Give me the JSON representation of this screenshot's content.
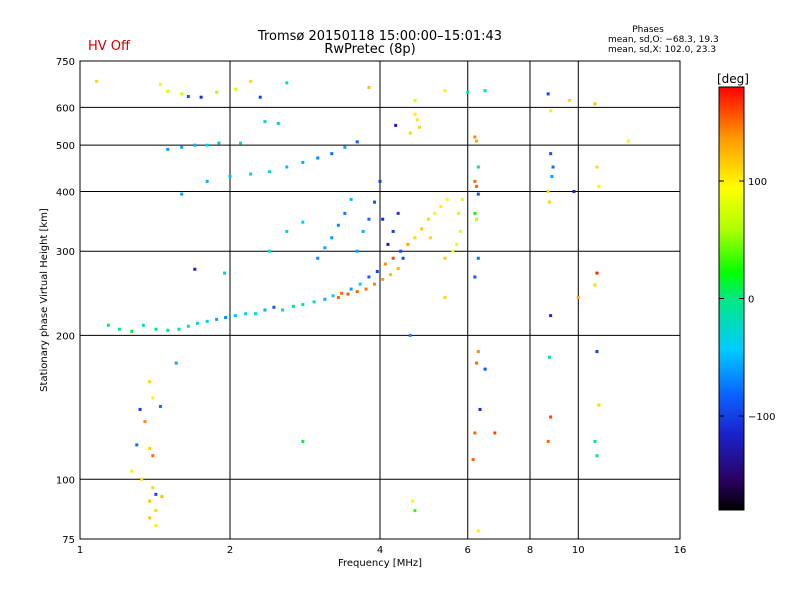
{
  "header": {
    "title_line1": "Tromsø 20150118 15:00:00–15:01:43",
    "title_line2": "RwPretec (8p)",
    "status": "HV Off",
    "status_color": "#cc0000",
    "phases_heading": "Phases",
    "phases_line1": "mean, sd,O: −68.3, 19.3",
    "phases_line2": "mean, sd,X: 102.0, 23.3"
  },
  "colorbar": {
    "unit_label": "[deg]",
    "ticks": [
      "100",
      "0",
      "−100"
    ],
    "tick_values": [
      100,
      0,
      -100
    ],
    "range": [
      -180,
      180
    ]
  },
  "chart_data": {
    "type": "scatter",
    "xlabel": "Frequency [MHz]",
    "ylabel": "Stationary phase Virtual Height [km]",
    "xscale": "log",
    "yscale": "log",
    "xlim": [
      1,
      16
    ],
    "ylim": [
      75,
      750
    ],
    "xticks": [
      1,
      2,
      4,
      6,
      8,
      10,
      16
    ],
    "xtick_labels": [
      "1",
      "2",
      "4",
      "6",
      "8",
      "10",
      "16"
    ],
    "yticks": [
      75,
      100,
      200,
      300,
      400,
      500,
      600,
      750
    ],
    "ytick_labels": [
      "75",
      "100",
      "200",
      "300",
      "400",
      "500",
      "600",
      "750"
    ],
    "grid_x": [
      2,
      4,
      6,
      8,
      10
    ],
    "grid_y": [
      100,
      200,
      300,
      400,
      500,
      600
    ],
    "series": [
      {
        "values": [
          [
            1.14,
            210,
            0
          ],
          [
            1.2,
            206,
            -10
          ],
          [
            1.27,
            204,
            10
          ],
          [
            1.34,
            210,
            -20
          ],
          [
            1.42,
            206,
            0
          ],
          [
            1.5,
            205,
            -5
          ],
          [
            1.58,
            206,
            -15
          ],
          [
            1.65,
            209,
            -30
          ],
          [
            1.72,
            212,
            -25
          ],
          [
            1.8,
            214,
            -40
          ],
          [
            1.88,
            216,
            -60
          ],
          [
            1.96,
            218,
            -70
          ],
          [
            2.05,
            220,
            -50
          ],
          [
            2.15,
            222,
            -40
          ],
          [
            2.25,
            222,
            -20
          ],
          [
            2.35,
            226,
            -55
          ],
          [
            2.45,
            229,
            -90
          ],
          [
            2.55,
            226,
            -25
          ],
          [
            2.68,
            230,
            -10
          ],
          [
            2.8,
            232,
            -15
          ],
          [
            2.95,
            235,
            -30
          ],
          [
            3.1,
            238,
            -55
          ],
          [
            3.22,
            242,
            -45
          ],
          [
            3.35,
            245,
            150
          ],
          [
            3.5,
            250,
            -60
          ],
          [
            3.65,
            256,
            -40
          ],
          [
            3.8,
            265,
            -85
          ],
          [
            3.95,
            272,
            -100
          ],
          [
            4.1,
            282,
            140
          ],
          [
            4.25,
            290,
            160
          ],
          [
            4.4,
            300,
            -95
          ],
          [
            4.55,
            310,
            130
          ],
          [
            4.7,
            320,
            110
          ],
          [
            4.85,
            334,
            115
          ],
          [
            5.0,
            350,
            60
          ],
          [
            5.15,
            360,
            90
          ],
          [
            5.3,
            372,
            100
          ],
          [
            5.45,
            385,
            95
          ],
          [
            3.3,
            240,
            150
          ],
          [
            3.45,
            244,
            155
          ],
          [
            3.6,
            247,
            150
          ],
          [
            3.75,
            250,
            145
          ],
          [
            3.9,
            256,
            140
          ],
          [
            4.05,
            262,
            135
          ],
          [
            4.2,
            268,
            120
          ],
          [
            4.35,
            276,
            125
          ],
          [
            3.0,
            290,
            -70
          ],
          [
            3.1,
            305,
            -60
          ],
          [
            3.2,
            320,
            -65
          ],
          [
            3.3,
            340,
            -70
          ],
          [
            3.4,
            360,
            -75
          ],
          [
            3.5,
            385,
            -50
          ],
          [
            3.6,
            300,
            -60
          ],
          [
            3.7,
            330,
            -55
          ],
          [
            3.8,
            350,
            -80
          ],
          [
            3.9,
            380,
            -90
          ],
          [
            4.0,
            420,
            -100
          ],
          [
            4.05,
            350,
            -110
          ],
          [
            4.15,
            310,
            -120
          ],
          [
            4.25,
            330,
            -100
          ],
          [
            4.35,
            360,
            -105
          ],
          [
            4.45,
            290,
            -95
          ],
          [
            2.4,
            300,
            -20
          ],
          [
            2.6,
            330,
            -35
          ],
          [
            2.8,
            345,
            -40
          ],
          [
            1.6,
            395,
            -60
          ],
          [
            1.8,
            420,
            -55
          ],
          [
            2.0,
            430,
            -50
          ],
          [
            2.2,
            435,
            -40
          ],
          [
            2.4,
            440,
            -30
          ],
          [
            2.6,
            450,
            -50
          ],
          [
            2.8,
            460,
            -55
          ],
          [
            3.0,
            470,
            -70
          ],
          [
            3.2,
            480,
            -80
          ],
          [
            3.4,
            495,
            -60
          ],
          [
            3.6,
            508,
            -90
          ],
          [
            1.5,
            490,
            -65
          ],
          [
            1.6,
            495,
            -60
          ],
          [
            1.7,
            500,
            -55
          ],
          [
            1.8,
            500,
            -35
          ],
          [
            1.9,
            505,
            -50
          ],
          [
            2.1,
            505,
            -20
          ],
          [
            2.35,
            560,
            -20
          ],
          [
            2.5,
            555,
            -30
          ],
          [
            1.08,
            680,
            110
          ],
          [
            1.45,
            670,
            90
          ],
          [
            1.5,
            648,
            80
          ],
          [
            1.6,
            640,
            70
          ],
          [
            1.65,
            632,
            -90
          ],
          [
            1.75,
            630,
            -110
          ],
          [
            1.88,
            645,
            60
          ],
          [
            2.05,
            655,
            80
          ],
          [
            2.2,
            680,
            110
          ],
          [
            2.6,
            675,
            -10
          ],
          [
            2.3,
            630,
            -100
          ],
          [
            4.3,
            550,
            -120
          ],
          [
            4.7,
            620,
            80
          ],
          [
            5.4,
            650,
            100
          ],
          [
            6.0,
            645,
            -20
          ],
          [
            6.5,
            650,
            -5
          ],
          [
            3.8,
            660,
            120
          ],
          [
            4.7,
            580,
            100
          ],
          [
            4.75,
            565,
            105
          ],
          [
            4.8,
            545,
            110
          ],
          [
            4.6,
            530,
            110
          ],
          [
            5.05,
            320,
            110
          ],
          [
            5.4,
            290,
            115
          ],
          [
            5.6,
            300,
            90
          ],
          [
            5.7,
            310,
            85
          ],
          [
            5.8,
            330,
            80
          ],
          [
            5.75,
            360,
            75
          ],
          [
            5.85,
            385,
            80
          ],
          [
            6.2,
            520,
            140
          ],
          [
            6.25,
            510,
            130
          ],
          [
            6.3,
            450,
            -20
          ],
          [
            6.2,
            420,
            150
          ],
          [
            6.25,
            410,
            150
          ],
          [
            6.3,
            395,
            -90
          ],
          [
            6.2,
            360,
            20
          ],
          [
            6.25,
            350,
            60
          ],
          [
            6.3,
            290,
            -80
          ],
          [
            6.2,
            265,
            -90
          ],
          [
            6.3,
            185,
            140
          ],
          [
            6.25,
            175,
            150
          ],
          [
            6.35,
            140,
            -110
          ],
          [
            6.2,
            125,
            150
          ],
          [
            6.15,
            110,
            150
          ],
          [
            6.3,
            78,
            100
          ],
          [
            6.8,
            125,
            160
          ],
          [
            6.5,
            170,
            -90
          ],
          [
            8.7,
            640,
            -100
          ],
          [
            8.8,
            590,
            100
          ],
          [
            8.8,
            480,
            -90
          ],
          [
            8.9,
            450,
            -80
          ],
          [
            8.85,
            430,
            -60
          ],
          [
            8.7,
            400,
            110
          ],
          [
            8.75,
            380,
            110
          ],
          [
            8.8,
            220,
            -110
          ],
          [
            8.75,
            180,
            -20
          ],
          [
            8.8,
            135,
            160
          ],
          [
            8.7,
            120,
            150
          ],
          [
            9.6,
            620,
            110
          ],
          [
            9.8,
            400,
            -120
          ],
          [
            10.0,
            240,
            130
          ],
          [
            10.8,
            610,
            120
          ],
          [
            10.9,
            450,
            110
          ],
          [
            11.0,
            410,
            100
          ],
          [
            10.9,
            270,
            170
          ],
          [
            10.8,
            255,
            110
          ],
          [
            10.9,
            185,
            -100
          ],
          [
            11.0,
            143,
            110
          ],
          [
            10.8,
            120,
            -10
          ],
          [
            10.9,
            112,
            -20
          ],
          [
            12.6,
            510,
            100
          ],
          [
            1.38,
            160,
            110
          ],
          [
            1.4,
            148,
            100
          ],
          [
            1.32,
            140,
            -100
          ],
          [
            1.35,
            132,
            140
          ],
          [
            1.3,
            118,
            -80
          ],
          [
            1.38,
            116,
            110
          ],
          [
            1.4,
            112,
            150
          ],
          [
            1.33,
            100,
            110
          ],
          [
            1.4,
            96,
            110
          ],
          [
            1.42,
            93,
            -100
          ],
          [
            1.46,
            92,
            120
          ],
          [
            1.38,
            90,
            120
          ],
          [
            1.42,
            86,
            110
          ],
          [
            1.38,
            83,
            120
          ],
          [
            1.45,
            142,
            -80
          ],
          [
            1.27,
            104,
            100
          ],
          [
            1.42,
            80,
            100
          ],
          [
            1.7,
            275,
            -120
          ],
          [
            1.95,
            270,
            -40
          ],
          [
            2.8,
            120,
            10
          ],
          [
            1.56,
            175,
            -60
          ],
          [
            4.65,
            90,
            100
          ],
          [
            4.7,
            86,
            30
          ],
          [
            4.6,
            200,
            -70
          ],
          [
            5.4,
            240,
            110
          ]
        ]
      }
    ],
    "series_format": "[frequency_MHz, virtual_height_km, phase_deg]"
  }
}
